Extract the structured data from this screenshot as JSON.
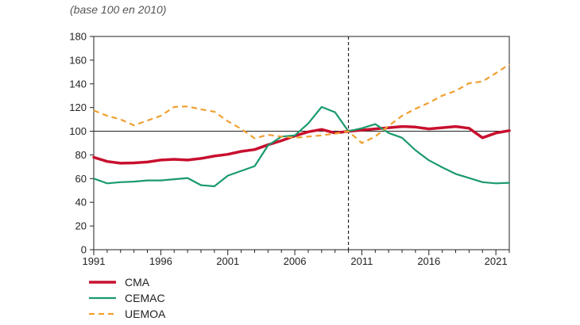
{
  "subtitle": "(base 100 en 2010)",
  "chart_data": {
    "type": "line",
    "title": "",
    "subtitle": "(base 100 en 2010)",
    "xlabel": "",
    "ylabel": "",
    "xlim": [
      1991,
      2022
    ],
    "ylim": [
      0,
      180
    ],
    "yticks": [
      0,
      20,
      40,
      60,
      80,
      100,
      120,
      140,
      160,
      180
    ],
    "xticks": [
      1991,
      1996,
      2001,
      2006,
      2011,
      2016,
      2021
    ],
    "reference_line_y": 100,
    "vertical_marker_x": 2010,
    "x": [
      1991,
      1992,
      1993,
      1994,
      1995,
      1996,
      1997,
      1998,
      1999,
      2000,
      2001,
      2002,
      2003,
      2004,
      2005,
      2006,
      2007,
      2008,
      2009,
      2010,
      2011,
      2012,
      2013,
      2014,
      2015,
      2016,
      2017,
      2018,
      2019,
      2020,
      2021,
      2022
    ],
    "series": [
      {
        "name": "CMA",
        "color": "#c8102e",
        "style": "solid",
        "width": 3.5,
        "values": [
          78,
          74.5,
          73,
          73.3,
          74,
          75.7,
          76.3,
          75.7,
          77,
          79,
          80.5,
          83,
          84.5,
          88.5,
          92,
          96,
          99.5,
          101.5,
          98.5,
          100,
          101,
          102,
          103,
          104,
          103.5,
          102,
          103,
          104,
          102.5,
          94.5,
          98.5,
          100.5
        ]
      },
      {
        "name": "CEMAC",
        "color": "#1a9a6c",
        "style": "solid",
        "width": 2.2,
        "values": [
          60,
          56,
          57,
          57.5,
          58.5,
          58.5,
          59.5,
          60.5,
          54.5,
          53.5,
          62.5,
          66.5,
          70.5,
          88,
          95.5,
          96.5,
          106.5,
          120.5,
          116,
          100,
          102.5,
          106,
          98.5,
          94.5,
          84,
          75.5,
          69.5,
          64,
          60.5,
          57,
          56,
          56.5
        ]
      },
      {
        "name": "UEMOA",
        "color": "#f0a030",
        "style": "dashed",
        "width": 2.2,
        "values": [
          117.5,
          113,
          110,
          105,
          109,
          113,
          120.5,
          121,
          118.5,
          116.5,
          108.5,
          102,
          94,
          97,
          95.5,
          94.5,
          95.5,
          96.5,
          98,
          100,
          90,
          95.5,
          104.5,
          113,
          119,
          124,
          130,
          134,
          140.5,
          142,
          149,
          156.5
        ]
      }
    ],
    "legend": [
      "CMA",
      "CEMAC",
      "UEMOA"
    ],
    "legend_position": "bottom-left"
  }
}
